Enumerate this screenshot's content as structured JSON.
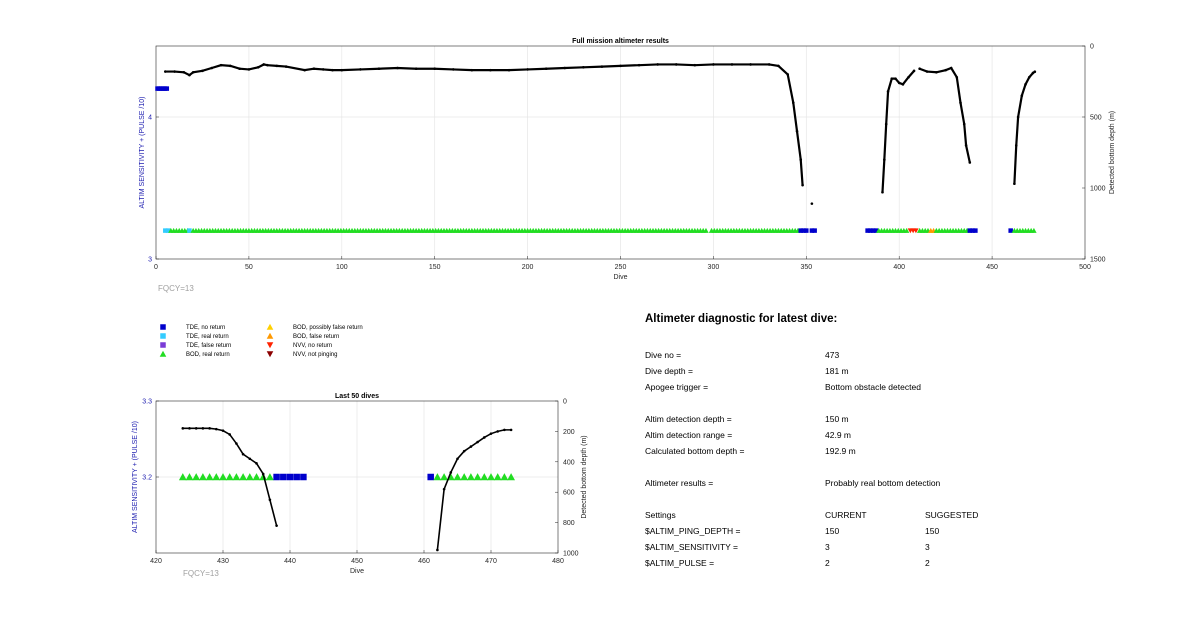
{
  "figure": {
    "top_chart": {
      "type": "scatter",
      "title": "Full mission altimeter results",
      "xlabel": "Dive",
      "ylabel_left": "ALTIM SENSITIVITY + (PULSE /10)",
      "ylabel_right": "Detected bottom depth (m)",
      "xlim": [
        0,
        500
      ],
      "ylim_left": [
        3,
        4.5
      ],
      "ylim_right": [
        0,
        1500
      ],
      "right_axis_reversed": true,
      "xticks": [
        0,
        50,
        100,
        150,
        200,
        250,
        300,
        350,
        400,
        450,
        500
      ],
      "yticks_left": [
        3,
        4
      ],
      "yticks_right": [
        0,
        500,
        1000,
        1500
      ],
      "grid": true,
      "fqcy_label": "FQCY=13",
      "bottom_depth_series": [
        {
          "name": "",
          "x": [
            5,
            10,
            15,
            18,
            20,
            25,
            30,
            35,
            40,
            45,
            50,
            55,
            58,
            60,
            65,
            70,
            80,
            85,
            90,
            95,
            100,
            110,
            120,
            130,
            140,
            150,
            160,
            170,
            180,
            190,
            200,
            210,
            220,
            230,
            240,
            250,
            260,
            270,
            280,
            290,
            300,
            310,
            320,
            330,
            335,
            340,
            343,
            345,
            347,
            348
          ],
          "y": [
            180,
            180,
            185,
            205,
            185,
            175,
            155,
            135,
            140,
            160,
            165,
            150,
            130,
            135,
            140,
            145,
            170,
            160,
            165,
            170,
            170,
            165,
            160,
            155,
            160,
            160,
            165,
            170,
            170,
            170,
            165,
            160,
            155,
            150,
            145,
            140,
            135,
            130,
            130,
            135,
            130,
            130,
            130,
            130,
            140,
            200,
            400,
            600,
            800,
            980
          ]
        },
        {
          "name": "",
          "x": [
            353
          ],
          "y": [
            1110
          ]
        },
        {
          "name": "",
          "x": [
            391,
            392,
            393,
            394,
            396,
            398,
            400,
            402,
            405,
            408
          ],
          "y": [
            1030,
            800,
            550,
            320,
            230,
            230,
            260,
            270,
            220,
            175
          ]
        },
        {
          "name": "",
          "x": [
            411,
            415,
            420,
            425,
            428,
            431,
            433,
            435,
            436,
            438
          ],
          "y": [
            160,
            180,
            185,
            170,
            155,
            220,
            400,
            550,
            700,
            820
          ]
        },
        {
          "name": "",
          "x": [
            462,
            463,
            464,
            466,
            468,
            470,
            472,
            473
          ],
          "y": [
            970,
            700,
            500,
            350,
            270,
            220,
            190,
            181
          ]
        }
      ],
      "marker_segments": [
        {
          "kind": "tde_real",
          "from": 5,
          "to": 7
        },
        {
          "kind": "bod_real",
          "from": 8,
          "to": 17
        },
        {
          "kind": "tde_real",
          "from": 18,
          "to": 19
        },
        {
          "kind": "bod_real",
          "from": 20,
          "to": 296
        },
        {
          "kind": "bod_real",
          "from": 299,
          "to": 346
        },
        {
          "kind": "tde_no",
          "from": 347,
          "to": 350
        },
        {
          "kind": "tde_no",
          "from": 353,
          "to": 355
        },
        {
          "kind": "tde_no",
          "from": 383,
          "to": 388
        },
        {
          "kind": "bod_real",
          "from": 389,
          "to": 405
        },
        {
          "kind": "nvv_no",
          "from": 406,
          "to": 410
        },
        {
          "kind": "bod_real",
          "from": 411,
          "to": 416
        },
        {
          "kind": "bod_false",
          "from": 417,
          "to": 419
        },
        {
          "kind": "bod_real",
          "from": 420,
          "to": 437
        },
        {
          "kind": "tde_no",
          "from": 438,
          "to": 442
        },
        {
          "kind": "tde_no",
          "from": 460,
          "to": 461
        },
        {
          "kind": "bod_real",
          "from": 462,
          "to": 473
        }
      ],
      "sensitivity_markers": [
        {
          "x": 0,
          "x2": 5,
          "y": 4.2,
          "kind": "tde_no"
        }
      ]
    },
    "bottom_chart": {
      "type": "scatter",
      "title": "Last 50 dives",
      "xlabel": "Dive",
      "ylabel_left": "ALTIM SENSITIVITY + (PULSE /10)",
      "ylabel_right": "Detected bottom depth (m)",
      "xlim": [
        420,
        480
      ],
      "ylim_left": [
        3.1,
        3.3
      ],
      "ylim_right": [
        0,
        1000
      ],
      "right_axis_reversed": true,
      "xticks": [
        420,
        430,
        440,
        450,
        460,
        470,
        480
      ],
      "yticks_left": [
        3.2,
        3.3
      ],
      "yticks_right": [
        0,
        200,
        400,
        600,
        800,
        1000
      ],
      "grid": true,
      "fqcy_label": "FQCY=13",
      "bottom_depth_series": [
        {
          "name": "",
          "x": [
            424,
            425,
            426,
            427,
            428,
            429,
            430,
            431,
            432,
            433,
            434,
            435,
            436,
            437,
            438
          ],
          "y": [
            180,
            180,
            180,
            180,
            180,
            185,
            195,
            220,
            280,
            350,
            380,
            410,
            480,
            650,
            820
          ]
        },
        {
          "name": "",
          "x": [
            462,
            463,
            464,
            465,
            466,
            467,
            468,
            469,
            470,
            471,
            472,
            473
          ],
          "y": [
            980,
            580,
            470,
            380,
            330,
            300,
            270,
            240,
            215,
            200,
            190,
            190
          ]
        }
      ],
      "marker_segments": [
        {
          "kind": "bod_real",
          "from": 424,
          "to": 437
        },
        {
          "kind": "tde_no",
          "from": 438,
          "to": 442
        },
        {
          "kind": "tde_no",
          "from": 461,
          "to": 461
        },
        {
          "kind": "bod_real",
          "from": 462,
          "to": 473
        }
      ]
    },
    "legend": [
      {
        "label": "TDE, no return",
        "kind": "tde_no",
        "shape": "square",
        "color": "#0000cc"
      },
      {
        "label": "TDE, real return",
        "kind": "tde_real",
        "shape": "square",
        "color": "#33ccff"
      },
      {
        "label": "TDE, false return",
        "kind": "tde_false",
        "shape": "square",
        "color": "#7a3cd6"
      },
      {
        "label": "BOD, real return",
        "kind": "bod_real",
        "shape": "triangle-up",
        "color": "#22dd22"
      },
      {
        "label": "BOD, possibly false return",
        "kind": "bod_maybe",
        "shape": "triangle-up",
        "color": "#ffd000"
      },
      {
        "label": "BOD, false return",
        "kind": "bod_false",
        "shape": "triangle-up",
        "color": "#ff9900"
      },
      {
        "label": "NVV, no return",
        "kind": "nvv_no",
        "shape": "triangle-down",
        "color": "#ff2200"
      },
      {
        "label": "NVV, not pinging",
        "kind": "nvv_off",
        "shape": "triangle-down",
        "color": "#8b0000"
      }
    ]
  },
  "diagnostic": {
    "title": "Altimeter diagnostic for latest dive:",
    "dive_no_label": "Dive no =",
    "dive_no": "473",
    "dive_depth_label": "Dive depth =",
    "dive_depth": "181 m",
    "apogee_label": "Apogee trigger =",
    "apogee": "Bottom obstacle detected",
    "det_depth_label": "Altim detection depth =",
    "det_depth": "150 m",
    "det_range_label": "Altim detection range =",
    "det_range": "42.9 m",
    "calc_depth_label": "Calculated bottom depth =",
    "calc_depth": "192.9 m",
    "results_label": "Altimeter results =",
    "results": "Probably real bottom detection",
    "settings_label": "Settings",
    "current_label": "CURRENT",
    "suggested_label": "SUGGESTED",
    "settings": [
      {
        "name": "$ALTIM_PING_DEPTH =",
        "current": "150",
        "suggested": "150"
      },
      {
        "name": "$ALTIM_SENSITIVITY =",
        "current": "3",
        "suggested": "3"
      },
      {
        "name": "$ALTIM_PULSE =",
        "current": "2",
        "suggested": "2"
      }
    ]
  }
}
